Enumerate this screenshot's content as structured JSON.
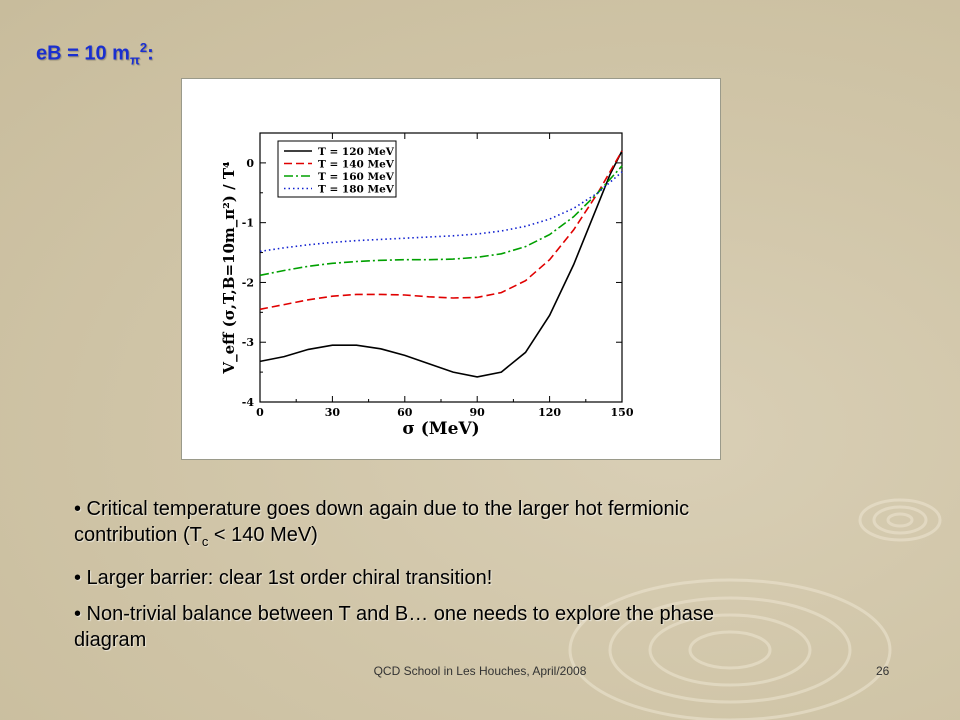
{
  "slide": {
    "title_main": "eB = 10 m",
    "title_sub": "π",
    "title_sup": "2",
    "title_end": ":",
    "bullets": [
      {
        "text": "• Critical temperature goes down again due to the larger hot fermionic contribution (T",
        "sub": "c",
        "after": " < 140 MeV)"
      },
      {
        "text": "• Larger barrier: clear 1st order chiral transition!"
      },
      {
        "text": "• Non-trivial balance between T and B… one needs to explore the phase diagram"
      }
    ],
    "footer": "QCD School in Les Houches, April/2008",
    "page_number": "26"
  },
  "chart_data": {
    "type": "line",
    "xlabel": "σ (MeV)",
    "ylabel": "V_eff (σ,T,B=10m_π²) / T⁴",
    "xlim": [
      0,
      150
    ],
    "ylim": [
      -4,
      0.5
    ],
    "xticks": [
      "0",
      "30",
      "60",
      "90",
      "120",
      "150"
    ],
    "yticks": [
      "0",
      "-1",
      "-2",
      "-3",
      "-4"
    ],
    "legend_position": "top-left",
    "grid": false,
    "series": [
      {
        "name": "T = 120 MeV",
        "color": "#000000",
        "dash": "",
        "x": [
          0,
          10,
          20,
          30,
          40,
          50,
          60,
          70,
          80,
          90,
          100,
          110,
          120,
          130,
          140,
          145,
          150
        ],
        "y": [
          -3.32,
          -3.24,
          -3.12,
          -3.05,
          -3.05,
          -3.11,
          -3.22,
          -3.36,
          -3.5,
          -3.58,
          -3.5,
          -3.17,
          -2.55,
          -1.7,
          -0.7,
          -0.2,
          0.2
        ]
      },
      {
        "name": "T = 140 MeV",
        "color": "#e00000",
        "dash": "8,4",
        "x": [
          0,
          10,
          20,
          30,
          40,
          50,
          60,
          70,
          80,
          90,
          100,
          110,
          120,
          130,
          140,
          150
        ],
        "y": [
          -2.45,
          -2.37,
          -2.29,
          -2.23,
          -2.2,
          -2.2,
          -2.21,
          -2.24,
          -2.26,
          -2.25,
          -2.17,
          -1.97,
          -1.62,
          -1.12,
          -0.5,
          0.2
        ]
      },
      {
        "name": "T = 160 MeV",
        "color": "#00a000",
        "dash": "9,3,2,3",
        "x": [
          0,
          10,
          20,
          30,
          40,
          50,
          60,
          70,
          80,
          90,
          100,
          110,
          120,
          130,
          140,
          150
        ],
        "y": [
          -1.88,
          -1.8,
          -1.73,
          -1.68,
          -1.65,
          -1.63,
          -1.62,
          -1.62,
          -1.61,
          -1.58,
          -1.52,
          -1.4,
          -1.2,
          -0.9,
          -0.5,
          -0.05
        ]
      },
      {
        "name": "T = 180 MeV",
        "color": "#1020d0",
        "dash": "1.5,3",
        "x": [
          0,
          10,
          20,
          30,
          40,
          50,
          60,
          70,
          80,
          90,
          100,
          110,
          120,
          130,
          140,
          150
        ],
        "y": [
          -1.48,
          -1.42,
          -1.37,
          -1.33,
          -1.3,
          -1.28,
          -1.26,
          -1.24,
          -1.22,
          -1.19,
          -1.14,
          -1.06,
          -0.94,
          -0.76,
          -0.5,
          -0.15
        ]
      }
    ]
  }
}
